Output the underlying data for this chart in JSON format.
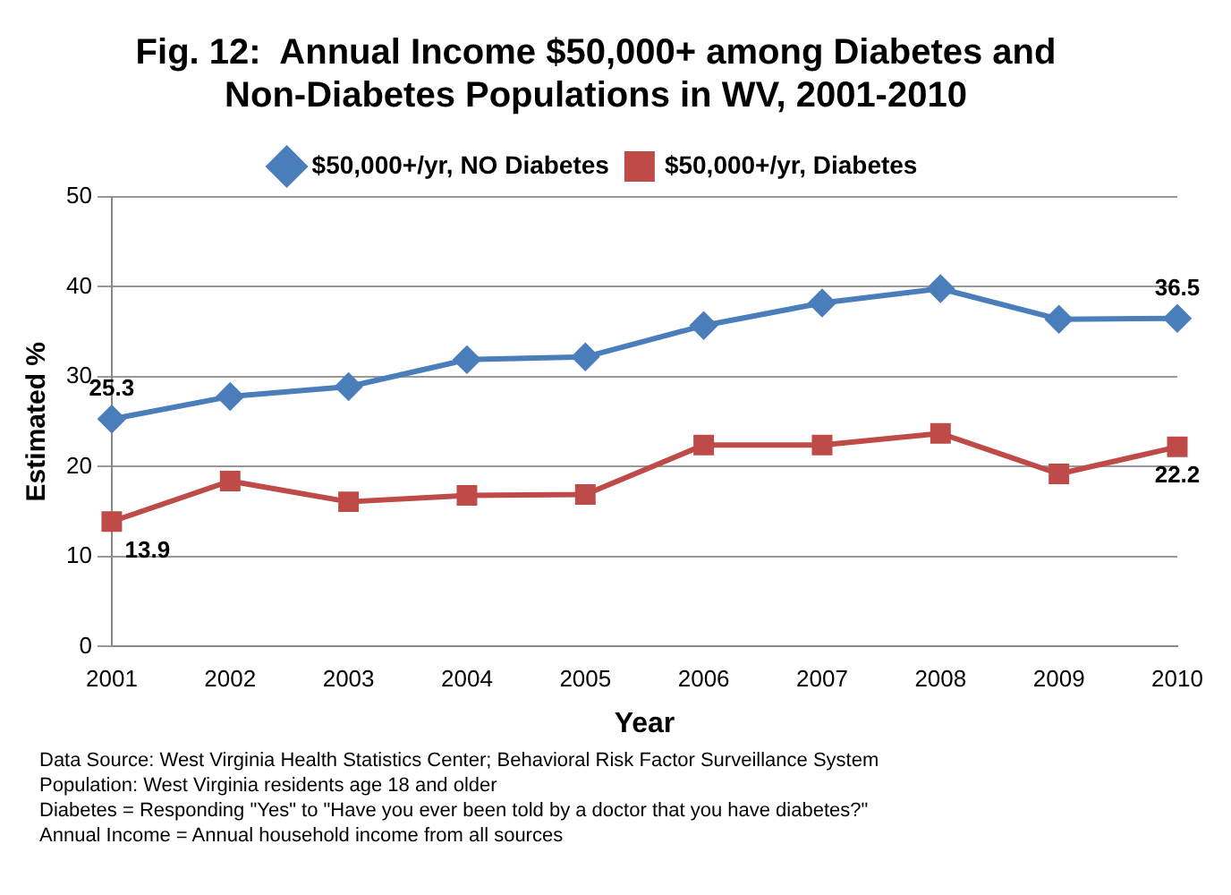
{
  "chart_data": {
    "type": "line",
    "title": [
      "Fig. 12:  Annual Income $50,000+ among Diabetes and",
      "Non-Diabetes Populations in WV, 2001-2010"
    ],
    "xlabel": "Year",
    "ylabel": "Estimated %",
    "categories": [
      "2001",
      "2002",
      "2003",
      "2004",
      "2005",
      "2006",
      "2007",
      "2008",
      "2009",
      "2010"
    ],
    "series": [
      {
        "name": "$50,000+/yr, NO Diabetes",
        "color": "#4a7ebb",
        "marker": "diamond",
        "values": [
          25.3,
          27.8,
          28.9,
          31.9,
          32.2,
          35.7,
          38.2,
          39.8,
          36.4,
          36.5
        ],
        "value_labels": [
          "25.3",
          null,
          null,
          null,
          null,
          null,
          null,
          null,
          null,
          "36.5"
        ]
      },
      {
        "name": "$50,000+/yr, Diabetes",
        "color": "#be4b48",
        "marker": "square",
        "values": [
          13.9,
          18.4,
          16.1,
          16.8,
          16.9,
          22.4,
          22.4,
          23.7,
          19.2,
          22.2
        ],
        "value_labels": [
          "13.9",
          null,
          null,
          null,
          null,
          null,
          null,
          null,
          null,
          "22.2"
        ]
      }
    ],
    "ylim": [
      0,
      50
    ],
    "yticks": [
      0,
      10,
      20,
      30,
      40,
      50
    ],
    "grid": "y",
    "legend": "top",
    "annotations": [
      "Data Source: West Virginia Health Statistics Center; Behavioral Risk Factor Surveillance System",
      "Population: West Virginia residents age 18 and older",
      "Diabetes = Responding \"Yes\" to \"Have you ever been told by a doctor that you have diabetes?\"",
      "Annual Income =  Annual household income from all sources"
    ]
  }
}
